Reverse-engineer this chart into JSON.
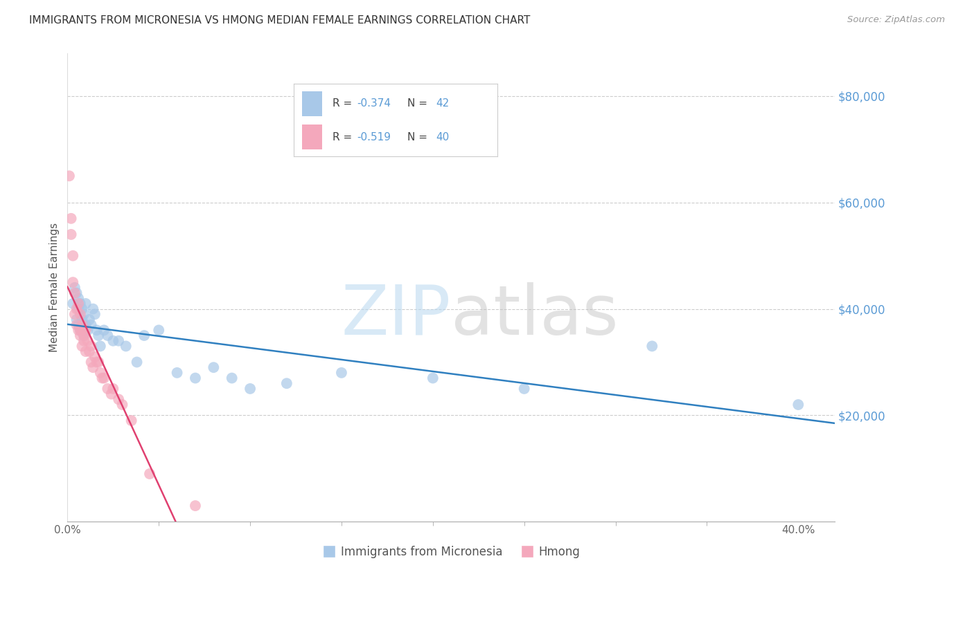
{
  "title": "IMMIGRANTS FROM MICRONESIA VS HMONG MEDIAN FEMALE EARNINGS CORRELATION CHART",
  "source": "Source: ZipAtlas.com",
  "ylabel": "Median Female Earnings",
  "right_ytick_labels": [
    "$80,000",
    "$60,000",
    "$40,000",
    "$20,000"
  ],
  "right_ytick_values": [
    80000,
    60000,
    40000,
    20000
  ],
  "ylim": [
    0,
    88000
  ],
  "xlim": [
    0.0,
    0.42
  ],
  "micronesia_color": "#a8c8e8",
  "hmong_color": "#f4a8bc",
  "micronesia_line_color": "#3080c0",
  "hmong_line_color": "#e04070",
  "watermark_zip_color": "#b8d8f0",
  "watermark_atlas_color": "#c0c0c0",
  "micronesia_x": [
    0.003,
    0.004,
    0.005,
    0.005,
    0.006,
    0.006,
    0.006,
    0.007,
    0.007,
    0.008,
    0.008,
    0.009,
    0.009,
    0.01,
    0.01,
    0.011,
    0.012,
    0.013,
    0.014,
    0.015,
    0.016,
    0.017,
    0.018,
    0.02,
    0.022,
    0.025,
    0.028,
    0.032,
    0.038,
    0.042,
    0.05,
    0.06,
    0.07,
    0.08,
    0.09,
    0.1,
    0.12,
    0.15,
    0.2,
    0.25,
    0.32,
    0.4
  ],
  "micronesia_y": [
    41000,
    44000,
    43000,
    38000,
    42000,
    40000,
    37000,
    41000,
    36000,
    40000,
    38000,
    39000,
    35000,
    41000,
    37000,
    36000,
    38000,
    37000,
    40000,
    39000,
    36000,
    35000,
    33000,
    36000,
    35000,
    34000,
    34000,
    33000,
    30000,
    35000,
    36000,
    28000,
    27000,
    29000,
    27000,
    25000,
    26000,
    28000,
    27000,
    25000,
    33000,
    22000
  ],
  "hmong_x": [
    0.001,
    0.002,
    0.002,
    0.003,
    0.003,
    0.004,
    0.004,
    0.005,
    0.005,
    0.006,
    0.006,
    0.007,
    0.007,
    0.007,
    0.008,
    0.008,
    0.008,
    0.009,
    0.009,
    0.01,
    0.01,
    0.011,
    0.012,
    0.013,
    0.013,
    0.014,
    0.015,
    0.016,
    0.017,
    0.018,
    0.019,
    0.02,
    0.022,
    0.024,
    0.025,
    0.028,
    0.03,
    0.035,
    0.045,
    0.07
  ],
  "hmong_y": [
    65000,
    57000,
    54000,
    50000,
    45000,
    43000,
    39000,
    40000,
    37000,
    41000,
    36000,
    39000,
    36000,
    35000,
    36000,
    33000,
    37000,
    35000,
    34000,
    36000,
    32000,
    34000,
    32000,
    30000,
    33000,
    29000,
    31000,
    30000,
    30000,
    28000,
    27000,
    27000,
    25000,
    24000,
    25000,
    23000,
    22000,
    19000,
    9000,
    3000
  ]
}
